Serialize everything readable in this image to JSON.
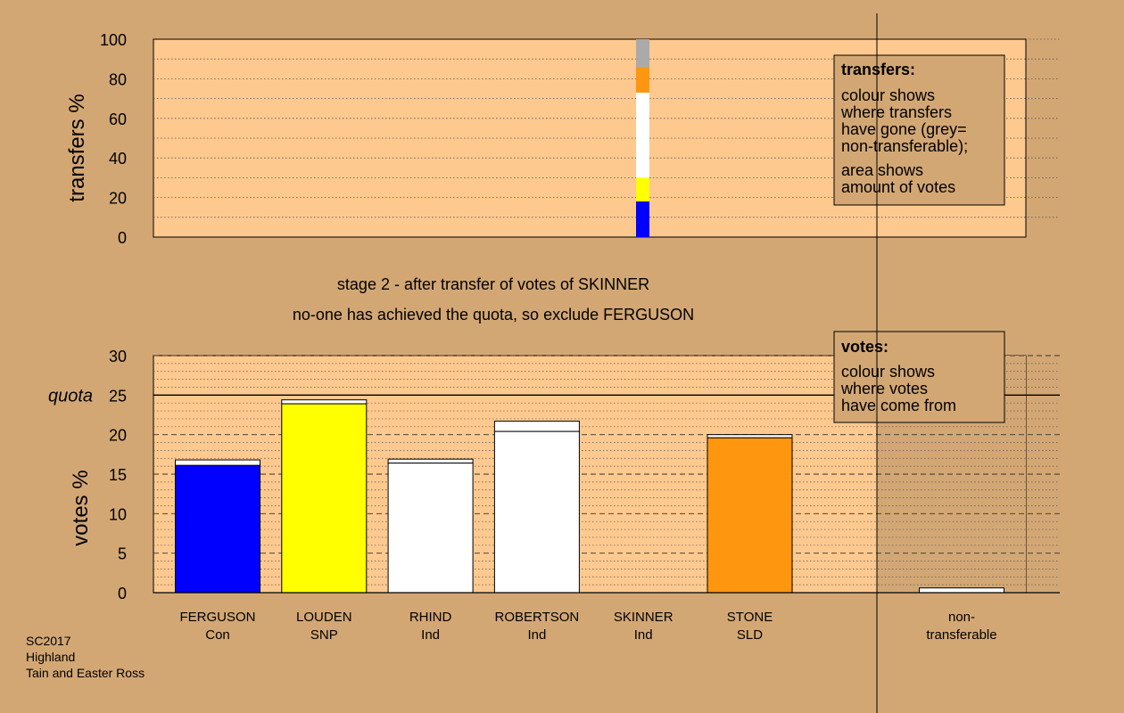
{
  "footer": {
    "line1": "SC2017",
    "line2": "Highland",
    "line3": "Tain and Easter Ross"
  },
  "messages": {
    "stage": "stage 2 - after transfer of votes of SKINNER",
    "status": "no-one has achieved the quota, so exclude FERGUSON"
  },
  "colors": {
    "background": "#d3a774",
    "panel": "#fdc98f",
    "con": "#0000ff",
    "snp": "#ffff00",
    "ind": "#ffffff",
    "sld": "#ff9610",
    "nontransferable": "#aaaaaa"
  },
  "chart_data": [
    {
      "type": "bar",
      "name": "transfers",
      "ylabel": "transfers %",
      "ylim": [
        0,
        100
      ],
      "yticks": [
        0,
        20,
        40,
        60,
        80,
        100
      ],
      "grid": true,
      "stacked_column_category": "SKINNER",
      "segments": [
        {
          "to": "FERGUSON",
          "from": 0,
          "to_value": 18,
          "color": "#0000ff"
        },
        {
          "to": "LOUDEN",
          "from": 18,
          "to_value": 30,
          "color": "#ffff00"
        },
        {
          "to": "RHIND / ROBERTSON",
          "from": 30,
          "to_value": 73,
          "color": "#ffffff"
        },
        {
          "to": "STONE",
          "from": 73,
          "to_value": 86,
          "color": "#ff9610"
        },
        {
          "to": "non-transferable",
          "from": 86,
          "to_value": 100,
          "color": "#aaaaaa"
        }
      ],
      "legend": {
        "title": "transfers:",
        "lines": [
          "colour shows",
          "where transfers",
          "have gone (grey=",
          "non-transferable);",
          "area shows",
          "amount of votes"
        ],
        "placement": "top-right"
      }
    },
    {
      "type": "bar",
      "name": "votes",
      "ylabel": "votes %",
      "ylim": [
        0,
        30
      ],
      "yticks": [
        0,
        5,
        10,
        15,
        20,
        25,
        30
      ],
      "quota": 25,
      "quota_label": "quota",
      "grid": true,
      "categories": [
        {
          "name": "FERGUSON",
          "party": "Con",
          "base": 16.1,
          "total": 16.8,
          "color": "#0000ff"
        },
        {
          "name": "LOUDEN",
          "party": "SNP",
          "base": 23.9,
          "total": 24.4,
          "color": "#ffff00"
        },
        {
          "name": "RHIND",
          "party": "Ind",
          "base": 16.4,
          "total": 16.9,
          "color": "#ffffff"
        },
        {
          "name": "ROBERTSON",
          "party": "Ind",
          "base": 20.4,
          "total": 21.7,
          "color": "#ffffff"
        },
        {
          "name": "SKINNER",
          "party": "Ind",
          "base": 0,
          "total": 0,
          "color": "#ffffff"
        },
        {
          "name": "STONE",
          "party": "SLD",
          "base": 19.6,
          "total": 20.0,
          "color": "#ff9610"
        }
      ],
      "nontransferable": {
        "label1": "non-",
        "label2": "transferable",
        "value": 0.6
      },
      "legend": {
        "title": "votes:",
        "lines": [
          "colour shows",
          "where votes",
          "have come from"
        ],
        "placement": "top-right"
      }
    }
  ]
}
